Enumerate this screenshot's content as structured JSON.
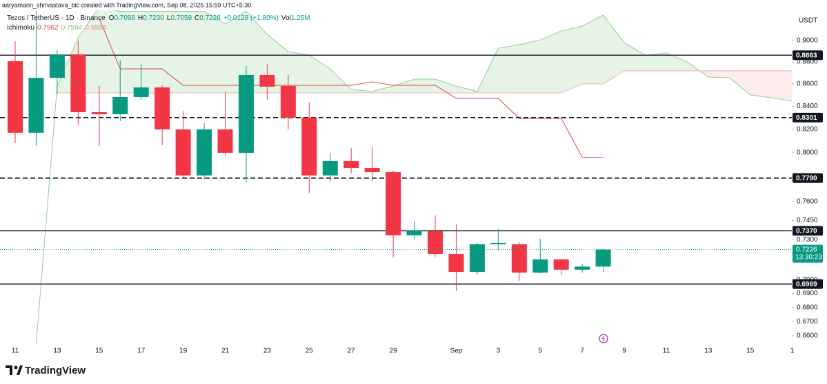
{
  "watermark": "aaryamann_shrivastava_bic created with TradingView.com, Sep 08, 2025 15:59 UTC+5:30",
  "chart_data": {
    "type": "candlestick",
    "symbol": "Tezos / TetherUS · 1D · Binance",
    "ohlc": [
      {
        "label": "O",
        "value": "0.7098"
      },
      {
        "label": "H",
        "value": "0.7230"
      },
      {
        "label": "L",
        "value": "0.7059"
      },
      {
        "label": "C",
        "value": "0.7226"
      }
    ],
    "change": "+0.0128 (+1.80%)",
    "volume": {
      "label": "Vol",
      "value": "1.25M"
    },
    "indicator": {
      "name": "Ichimoku",
      "values": [
        "0.7962",
        "0.7584",
        "0.9564"
      ],
      "colors": [
        "#e04848",
        "#7cc47f",
        "#f08a8a"
      ]
    },
    "currency": "USDT",
    "categories": [
      "11",
      null,
      "13",
      null,
      "15",
      null,
      "17",
      null,
      "19",
      null,
      "21",
      null,
      "23",
      null,
      "25",
      null,
      "27",
      null,
      "29",
      null,
      null,
      "Sep",
      null,
      "3",
      null,
      "5",
      null,
      "7",
      null,
      "9",
      null,
      "11",
      null,
      "13",
      null,
      "15",
      null,
      "1"
    ],
    "open": [
      0.8807,
      0.817,
      0.8655,
      0.8871,
      0.8348,
      0.833,
      0.8482,
      0.8568,
      0.8198,
      0.7811,
      0.8198,
      0.7999,
      0.8681,
      0.8581,
      0.83,
      0.7811,
      0.7931,
      0.7873,
      0.7839,
      0.7335,
      0.7367,
      0.7193,
      0.7059,
      0.7266,
      0.7266,
      0.7053,
      0.7152,
      0.7075,
      0.7098,
      null,
      null,
      null,
      null,
      null,
      null,
      null,
      null,
      null
    ],
    "high": [
      0.8994,
      0.928,
      0.891,
      0.9001,
      0.8581,
      0.8814,
      0.8781,
      0.8587,
      0.836,
      0.8252,
      0.8531,
      0.8763,
      0.8781,
      0.8681,
      0.8434,
      0.7999,
      0.804,
      0.8046,
      0.785,
      0.7442,
      0.749,
      0.742,
      0.7277,
      0.7383,
      0.7283,
      0.7309,
      0.7158,
      0.7116,
      0.723,
      null,
      null,
      null,
      null,
      null,
      null,
      null,
      null,
      null
    ],
    "low": [
      0.8081,
      0.8058,
      0.8507,
      0.8235,
      0.8058,
      0.827,
      0.8458,
      0.8064,
      0.7783,
      0.7777,
      0.7971,
      0.7755,
      0.8458,
      0.8198,
      0.7666,
      0.7761,
      0.7828,
      0.7761,
      0.7167,
      0.7303,
      0.7172,
      0.6917,
      0.7034,
      0.7224,
      0.6993,
      0.7048,
      0.7034,
      0.7053,
      0.7059,
      null,
      null,
      null,
      null,
      null,
      null,
      null,
      null,
      null
    ],
    "close": [
      0.817,
      0.8655,
      0.8871,
      0.8348,
      0.833,
      0.8482,
      0.8568,
      0.8198,
      0.7811,
      0.8198,
      0.7999,
      0.8681,
      0.8575,
      0.83,
      0.7811,
      0.7931,
      0.7873,
      0.7839,
      0.7335,
      0.7372,
      0.7193,
      0.7059,
      0.7266,
      0.7277,
      0.7053,
      0.7152,
      0.7075,
      0.7098,
      0.7226,
      null,
      null,
      null,
      null,
      null,
      null,
      null,
      null,
      null
    ],
    "up_color": "#089981",
    "down_color": "#f23645",
    "lines": [
      {
        "color": "#d9534f",
        "values": [
          null,
          null,
          null,
          null,
          0.9211,
          0.8737,
          0.8737,
          0.8737,
          0.8587,
          0.8587,
          0.8587,
          0.8587,
          0.8587,
          0.8587,
          0.8587,
          0.8587,
          0.8587,
          0.8618,
          0.8587,
          0.8587,
          0.8587,
          0.847,
          0.847,
          0.847,
          0.8294,
          0.8294,
          0.8294,
          0.7962,
          0.7962,
          null,
          null,
          null,
          null,
          null,
          null,
          null,
          null,
          null
        ]
      }
    ],
    "cloud": {
      "span_a": [
        null,
        0.6543,
        0.8581,
        0.9026,
        0.9325,
        0.928,
        0.928,
        0.928,
        0.928,
        0.928,
        0.9158,
        0.928,
        0.9059,
        0.8897,
        0.8864,
        0.8737,
        0.855,
        0.8531,
        0.8581,
        0.8643,
        0.8643,
        0.8581,
        0.8531,
        0.8929,
        0.8961,
        0.9007,
        0.9092,
        0.9138,
        0.9245,
        0.898,
        0.8864,
        0.8884,
        0.8801,
        0.8662,
        0.8656,
        0.8501,
        0.8476,
        0.8445
      ],
      "span_b": [
        null,
        null,
        0.8519,
        0.8519,
        0.8519,
        0.8519,
        0.8519,
        0.8519,
        0.8519,
        0.8519,
        0.8519,
        0.8519,
        0.8519,
        0.8519,
        0.8519,
        0.8519,
        0.8519,
        0.8519,
        0.8519,
        0.8519,
        0.8519,
        0.8519,
        0.8519,
        0.8519,
        0.8519,
        0.8519,
        0.8519,
        0.86,
        0.86,
        0.8719,
        0.8719,
        0.8719,
        0.8719,
        0.8719,
        0.8719,
        0.8719,
        0.8719,
        0.8719
      ],
      "a_color": "#8fce92",
      "b_color": "#f4b0b0",
      "up_fill": "#4caf50",
      "down_fill": "#f23645"
    },
    "levels": [
      {
        "value": 0.8863,
        "style": "solid"
      },
      {
        "value": 0.8301,
        "style": "dashed"
      },
      {
        "value": {
          "value": 0.779,
          "label": "0.7790"
        },
        "style": "dashed"
      },
      {
        "value": {
          "value": 0.737,
          "label": "0.7370"
        },
        "style": "solid"
      },
      {
        "value": 0.6969,
        "style": "solid"
      }
    ],
    "last_price": {
      "value": 0.7226,
      "countdown": "13:30:23"
    },
    "log": true,
    "ylim": [
      0.6543,
      0.9291
    ],
    "yticks": [
      {
        "value": 0.9,
        "label": "0.9000"
      },
      {
        "value": 0.88,
        "label": "0.8800"
      },
      {
        "value": 0.86,
        "label": "0.8600"
      },
      {
        "value": 0.84,
        "label": "0.8400"
      },
      {
        "value": 0.82,
        "label": "0.8200"
      },
      {
        "value": 0.8,
        "label": "0.8000"
      },
      {
        "value": 0.78,
        "label": "0.7800"
      },
      {
        "value": 0.76,
        "label": "0.7600"
      },
      {
        "value": 0.745,
        "label": "0.7450"
      },
      {
        "value": 0.73,
        "label": "0.7300"
      },
      {
        "value": 0.715,
        "label": "0.7150"
      },
      {
        "value": 0.7,
        "label": "0.7000"
      },
      {
        "value": 0.69,
        "label": "0.6900"
      },
      {
        "value": 0.68,
        "label": "0.6800"
      },
      {
        "value": 0.67,
        "label": "0.6700"
      },
      {
        "value": 0.66,
        "label": "0.6600"
      }
    ]
  },
  "brand": "TradingView"
}
